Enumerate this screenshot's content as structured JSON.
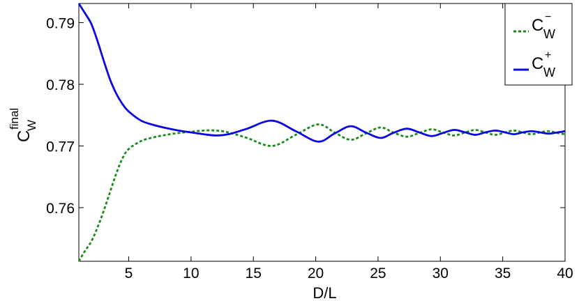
{
  "chart_data": {
    "type": "line",
    "x_label": "D/L",
    "y_label": {
      "base": "C",
      "subscript": "W",
      "superscript": "final"
    },
    "x": [
      1,
      1.5,
      2,
      2.5,
      3,
      3.5,
      4,
      4.5,
      5,
      6,
      7,
      8,
      9,
      10,
      11,
      12,
      13,
      14.5,
      16.5,
      18.4,
      20.2,
      21.5,
      22.8,
      24,
      25.2,
      26.2,
      27.3,
      28.3,
      29.3,
      30.2,
      31.1,
      32,
      32.8,
      33.6,
      34.4,
      35.2,
      35.9,
      36.6,
      37.3,
      38,
      38.7,
      39.4,
      40
    ],
    "series": [
      {
        "name": "C",
        "subscript": "W",
        "superscript": "−",
        "color": "#1a8a1a",
        "dashed": true,
        "values": [
          0.7513,
          0.753,
          0.7545,
          0.7568,
          0.7595,
          0.7625,
          0.7655,
          0.768,
          0.7695,
          0.7708,
          0.7714,
          0.7718,
          0.7721,
          0.7723,
          0.7725,
          0.7725,
          0.7722,
          0.7713,
          0.77,
          0.7718,
          0.7735,
          0.7722,
          0.771,
          0.772,
          0.773,
          0.7722,
          0.7715,
          0.7721,
          0.7727,
          0.7722,
          0.7717,
          0.7722,
          0.7726,
          0.7722,
          0.7718,
          0.7722,
          0.7725,
          0.7722,
          0.7719,
          0.7722,
          0.7724,
          0.7721,
          0.7719
        ]
      },
      {
        "name": "C",
        "subscript": "W",
        "superscript": "+",
        "color": "#0a0ae0",
        "dashed": false,
        "values": [
          0.7931,
          0.7915,
          0.7898,
          0.787,
          0.7838,
          0.7808,
          0.7785,
          0.7768,
          0.7756,
          0.7741,
          0.7734,
          0.7729,
          0.7725,
          0.7722,
          0.7719,
          0.7717,
          0.7719,
          0.7728,
          0.7741,
          0.7724,
          0.7707,
          0.772,
          0.7732,
          0.7722,
          0.7713,
          0.7721,
          0.7728,
          0.7722,
          0.7716,
          0.7721,
          0.7726,
          0.7722,
          0.7718,
          0.7722,
          0.7725,
          0.7722,
          0.7719,
          0.7722,
          0.7724,
          0.7722,
          0.772,
          0.7722,
          0.7724
        ]
      }
    ],
    "xlim": [
      1,
      40
    ],
    "xticks": [
      5,
      10,
      15,
      20,
      25,
      30,
      35,
      40
    ],
    "ylim": [
      0.7513,
      0.7931
    ],
    "yticks": [
      0.76,
      0.77,
      0.78,
      0.79
    ],
    "grid": false,
    "legend": "upper right"
  }
}
